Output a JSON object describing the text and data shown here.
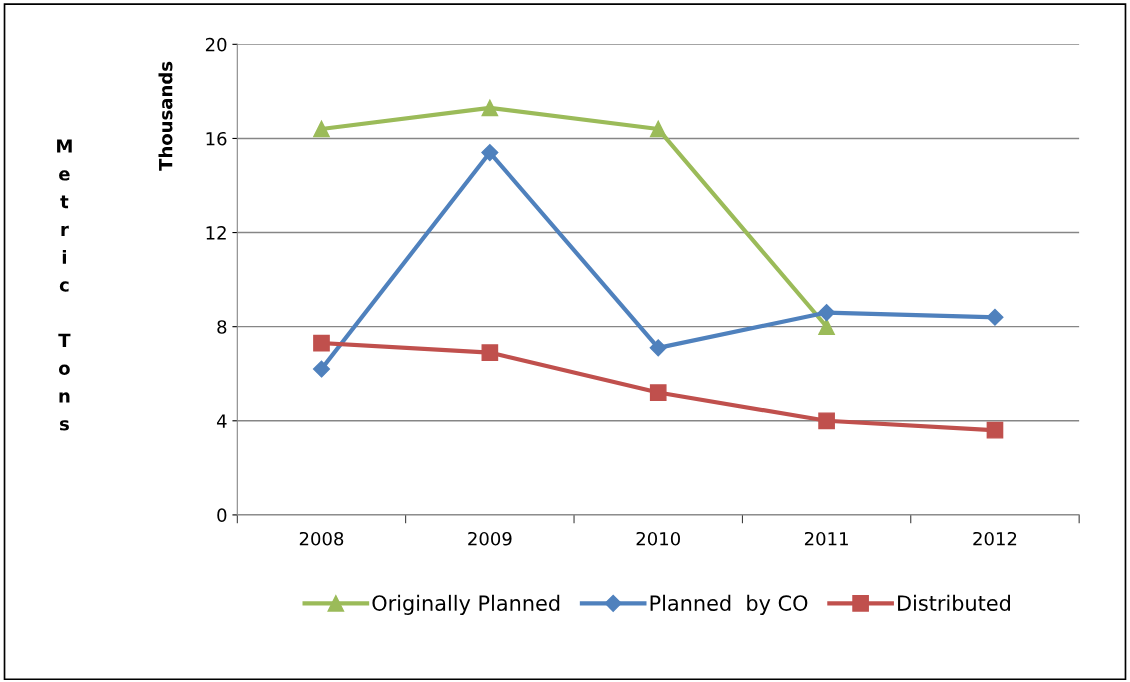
{
  "chart_data": {
    "type": "line",
    "ylabel": "Metric Tons",
    "annotations": [
      "Thousands"
    ],
    "categories": [
      "2008",
      "2009",
      "2010",
      "2011",
      "2012"
    ],
    "series": [
      {
        "name": "Originally Planned",
        "color": "#9bbb59",
        "marker": "triangle",
        "values": [
          16.4,
          17.3,
          16.4,
          8.0,
          null
        ]
      },
      {
        "name": "Planned  by CO",
        "color": "#4f81bd",
        "marker": "diamond",
        "values": [
          6.2,
          15.4,
          7.1,
          8.6,
          8.4
        ]
      },
      {
        "name": "Distributed",
        "color": "#c0504d",
        "marker": "square",
        "values": [
          7.3,
          6.9,
          5.2,
          4.0,
          3.6
        ]
      }
    ],
    "ylim": [
      0,
      20
    ],
    "yticks": [
      0,
      4,
      8,
      12,
      16,
      20
    ],
    "grid": "y",
    "legend": "bottom",
    "line_style": "solid"
  }
}
